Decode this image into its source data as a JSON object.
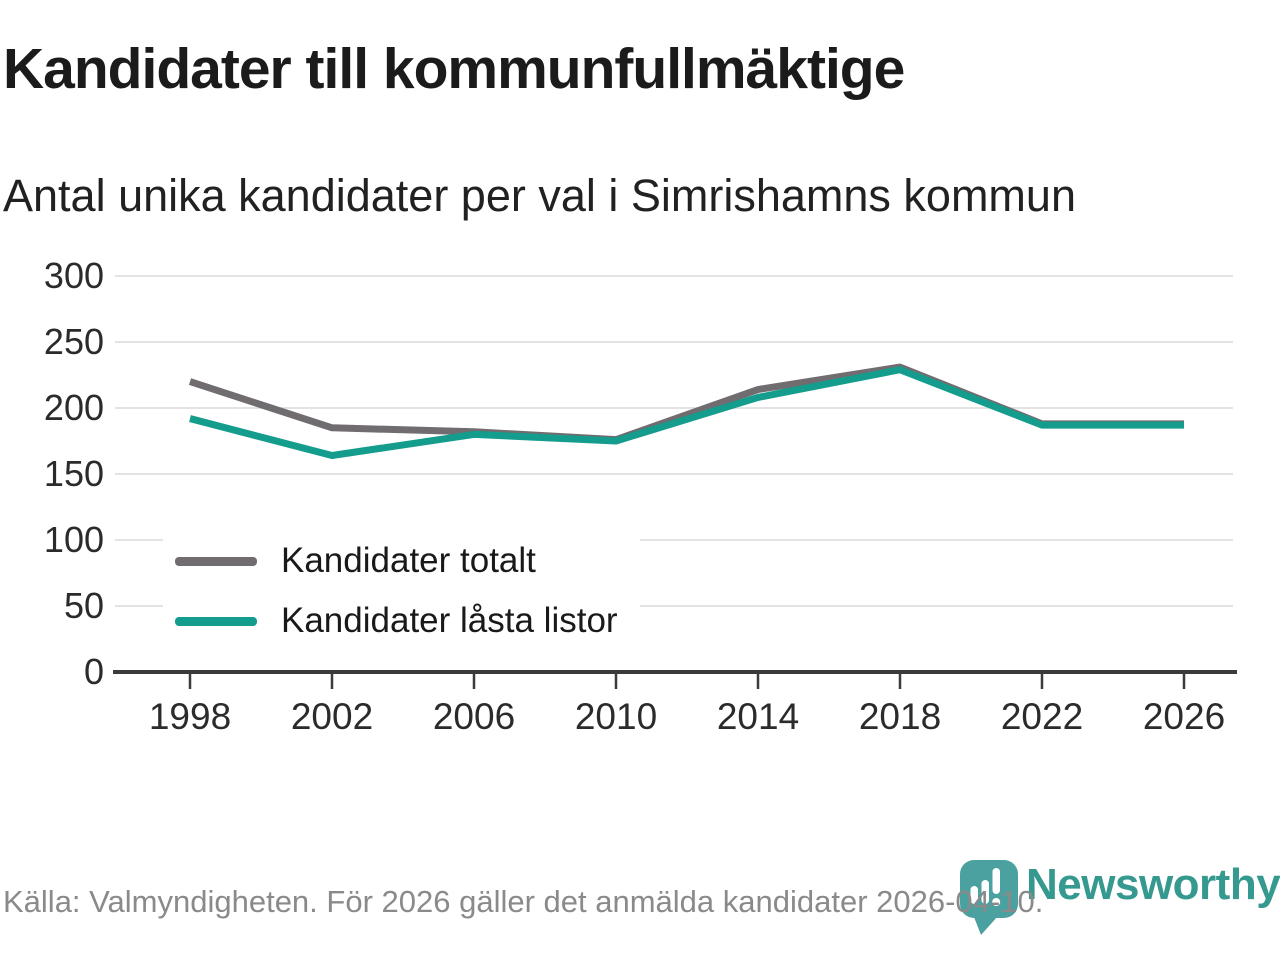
{
  "chart_data": {
    "type": "line",
    "title": "Kandidater till kommunfullmäktige",
    "subtitle": "Antal unika kandidater per val i Simrishamns kommun",
    "x": [
      1998,
      2002,
      2006,
      2010,
      2014,
      2018,
      2022,
      2026
    ],
    "series": [
      {
        "name": "Kandidater totalt",
        "color": "#716C70",
        "values": [
          220,
          185,
          182,
          176,
          214,
          231,
          188,
          188
        ]
      },
      {
        "name": "Kandidater låsta listor",
        "color": "#149C8D",
        "values": [
          192,
          164,
          180,
          175,
          208,
          229,
          187,
          187
        ]
      }
    ],
    "xlabel": "",
    "ylabel": "",
    "ylim": [
      0,
      300
    ],
    "yticks": [
      0,
      50,
      100,
      150,
      200,
      250,
      300
    ],
    "grid": "horizontal gridlines",
    "legend_position": "inside lower-left"
  },
  "footer": {
    "source": "Källa: Valmyndigheten. För 2026 gäller det anmälda kandidater 2026-04-10.",
    "brand": "Newsworthy"
  },
  "colors": {
    "series_totalt": "#716C70",
    "series_lasta_listor": "#149C8D",
    "gridline": "#E3E3E3",
    "axis": "#3B3B3B",
    "tick_label": "#2B2B2B",
    "title": "#1B1B1B",
    "subtitle": "#212121",
    "source_text": "#8A8A8A",
    "logo_bubble": "#4BA1A0",
    "logo_text": "#35998F"
  }
}
